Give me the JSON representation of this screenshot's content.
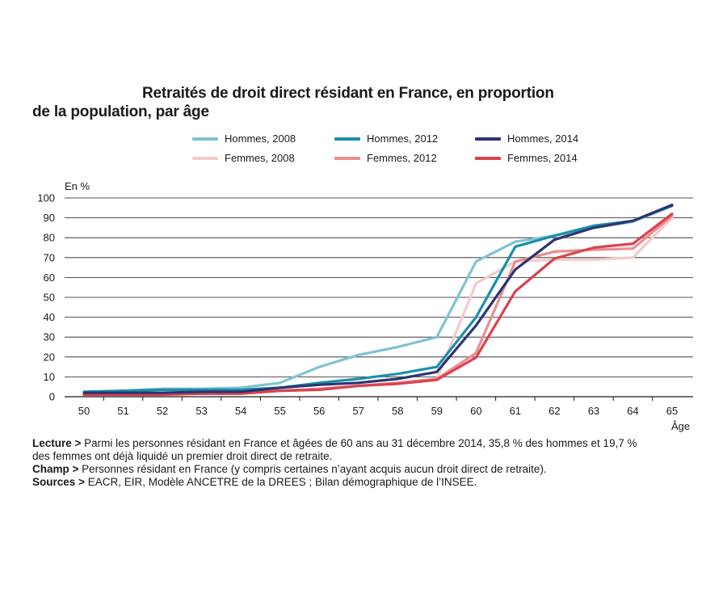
{
  "chart_data": {
    "type": "line",
    "title_line1": "Retraités de droit direct résidant en France, en proportion",
    "title_line2": "de la population, par âge",
    "ylabel": "En %",
    "xlabel": "Âge",
    "ylim": [
      0,
      100
    ],
    "yticks": [
      0,
      10,
      20,
      30,
      40,
      50,
      60,
      70,
      80,
      90,
      100
    ],
    "x": [
      50,
      51,
      52,
      53,
      54,
      55,
      56,
      57,
      58,
      59,
      60,
      61,
      62,
      63,
      64,
      65
    ],
    "grid": true,
    "legend_position": "top",
    "series": [
      {
        "name": "Hommes, 2008",
        "color": "#7fc3d2",
        "values": [
          2,
          3,
          4,
          4,
          4.5,
          7,
          15,
          21,
          25,
          30,
          68,
          78,
          81,
          85,
          88,
          96
        ]
      },
      {
        "name": "Hommes, 2012",
        "color": "#1a8fab",
        "values": [
          2.5,
          3,
          3.5,
          3.5,
          3.5,
          4.5,
          7,
          9,
          11.5,
          15,
          40,
          75.5,
          81,
          86,
          88.5,
          96
        ]
      },
      {
        "name": "Hommes, 2014",
        "color": "#2d3470",
        "values": [
          2,
          2,
          2,
          2.5,
          2.5,
          4.5,
          6,
          7,
          9,
          12.5,
          35.8,
          64,
          79,
          85,
          88.5,
          96.5
        ]
      },
      {
        "name": "Femmes, 2008",
        "color": "#f6c9c9",
        "values": [
          1.5,
          1.5,
          1.5,
          2,
          2.5,
          3,
          4,
          5.5,
          7,
          9,
          57,
          68,
          69,
          69,
          70,
          90
        ]
      },
      {
        "name": "Femmes, 2012",
        "color": "#e88f8f",
        "values": [
          1,
          1.5,
          1.5,
          2,
          2,
          3,
          4,
          5.5,
          7,
          9,
          22,
          68,
          73,
          74,
          74.5,
          91
        ]
      },
      {
        "name": "Femmes, 2014",
        "color": "#d9424f",
        "values": [
          1,
          1,
          1,
          1.5,
          1.5,
          3,
          3.5,
          5.5,
          6.5,
          8.5,
          19.7,
          53,
          69.5,
          75,
          77,
          92
        ]
      }
    ]
  },
  "notes": {
    "lecture_label": "Lecture >",
    "lecture_text": "Parmi les personnes résidant en France et âgées de 60 ans au 31 décembre 2014, 35,8 % des hommes et 19,7 %",
    "lecture_text2": "des femmes ont déjà liquidé un premier droit direct de retraite.",
    "champ_label": "Champ >",
    "champ_text": "Personnes résidant en France (y compris certaines n’ayant acquis aucun droit direct de retraite).",
    "sources_label": "Sources >",
    "sources_text": "EACR, EIR, Modèle ANCETRE de la DREES ; Bilan démographique de l’INSEE."
  }
}
